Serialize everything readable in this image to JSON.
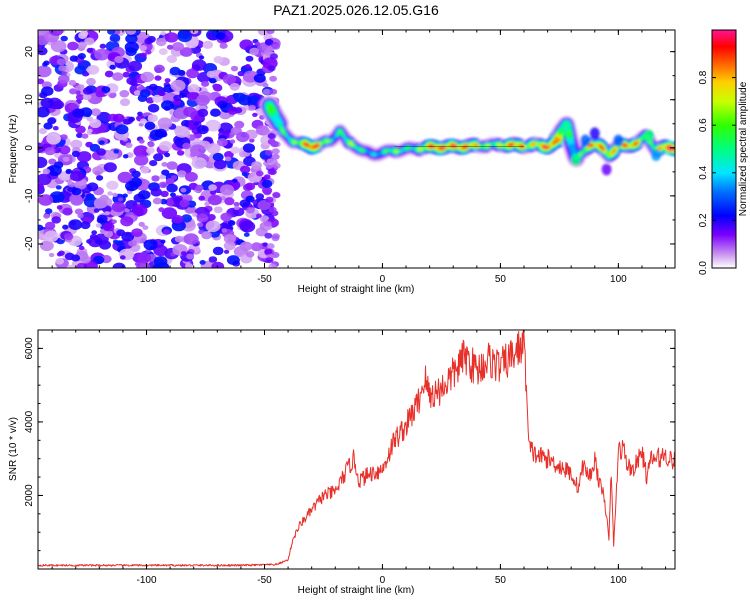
{
  "title": "PAZ1.2025.026.12.05.G16",
  "chart_data": [
    {
      "type": "heatmap",
      "xlabel": "Height of straight line (km)",
      "ylabel": "Frequency (Hz)",
      "xlim": [
        -146,
        124
      ],
      "ylim": [
        -25,
        24.5
      ],
      "xticks": [
        -100,
        -50,
        0,
        50,
        100
      ],
      "xtick_labels": [
        "-100",
        "-50",
        "0",
        "50",
        "100"
      ],
      "yticks": [
        -20,
        -10,
        0,
        10,
        20
      ],
      "ytick_labels": [
        "-20",
        "-10",
        "0",
        "10",
        "20"
      ],
      "colorbar": {
        "label": "Normalized spectral amplitude",
        "range": [
          0,
          1
        ],
        "ticks": [
          0,
          0.2,
          0.4,
          0.6,
          0.8
        ],
        "tick_labels": [
          "0.0",
          "0.2",
          "0.4",
          "0.6",
          "0.8"
        ],
        "colormap": "hsv_rainbow_white_low"
      },
      "noise_region": {
        "x_start": -146,
        "x_end": -46,
        "amplitude_range": [
          0.0,
          0.25
        ],
        "hue": "violet"
      },
      "ridge_frequency": {
        "x": [
          -48,
          -45,
          -42,
          -38,
          -34,
          -30,
          -26,
          -22,
          -18,
          -15,
          -12,
          -8,
          -4,
          0,
          5,
          10,
          20,
          30,
          40,
          50,
          60,
          66,
          70,
          74,
          76,
          78,
          80,
          82,
          85,
          88,
          92,
          96,
          100,
          104,
          108,
          112,
          116,
          120,
          124
        ],
        "freq": [
          9,
          6,
          3,
          1.5,
          0.7,
          0.3,
          0.8,
          1.5,
          3.5,
          1.2,
          0.6,
          -0.8,
          -1.3,
          -1,
          -0.6,
          -0.3,
          0.1,
          0.2,
          0.4,
          0.6,
          0.4,
          0.6,
          0.3,
          1.2,
          3.5,
          5,
          1,
          -2.5,
          -1,
          0.8,
          0.3,
          -1.5,
          0.3,
          0.5,
          1,
          2.5,
          -0.5,
          0.1,
          0
        ]
      },
      "ridge_amplitude": {
        "x": [
          -48,
          -40,
          -30,
          -20,
          -10,
          0,
          10,
          20,
          30,
          40,
          50,
          60,
          70,
          80,
          90,
          100,
          110,
          124
        ],
        "amp": [
          0.35,
          0.6,
          0.85,
          0.55,
          0.5,
          0.45,
          0.55,
          0.75,
          0.98,
          0.65,
          0.7,
          0.8,
          0.85,
          0.5,
          0.75,
          0.85,
          0.65,
          0.9
        ]
      }
    },
    {
      "type": "line",
      "xlabel": "Height of straight line (km)",
      "ylabel": "SNR (10 * v/v)",
      "xlim": [
        -146,
        124
      ],
      "ylim": [
        0,
        6500
      ],
      "xticks": [
        -100,
        -50,
        0,
        50,
        100
      ],
      "xtick_labels": [
        "-100",
        "-50",
        "0",
        "50",
        "100"
      ],
      "yticks": [
        2000,
        4000,
        6000
      ],
      "ytick_labels": [
        "2000",
        "4000",
        "6000"
      ],
      "color": "#e8302a",
      "series": [
        {
          "x": [
            -146,
            -120,
            -100,
            -80,
            -60,
            -45,
            -40,
            -38,
            -35,
            -30,
            -25,
            -20,
            -15,
            -12,
            -10,
            -5,
            0,
            5,
            10,
            15,
            18,
            20,
            25,
            30,
            35,
            40,
            45,
            50,
            55,
            58,
            60,
            61,
            62,
            65,
            70,
            75,
            80,
            83,
            85,
            88,
            90,
            92,
            94,
            96,
            97,
            98,
            100,
            102,
            104,
            106,
            108,
            110,
            112,
            114,
            116,
            120,
            124
          ],
          "y": [
            100,
            100,
            100,
            100,
            100,
            120,
            250,
            800,
            1200,
            1600,
            2000,
            2100,
            2700,
            3000,
            2400,
            2600,
            2700,
            3500,
            3900,
            4500,
            5200,
            4700,
            4900,
            5300,
            5800,
            5400,
            5700,
            5500,
            5800,
            6000,
            6200,
            5000,
            3300,
            3100,
            3000,
            2800,
            2600,
            2200,
            2800,
            2500,
            3000,
            2300,
            2000,
            800,
            2700,
            600,
            3200,
            3300,
            2800,
            2700,
            2900,
            3200,
            2500,
            3000,
            3000,
            3100,
            2900
          ]
        }
      ]
    }
  ]
}
